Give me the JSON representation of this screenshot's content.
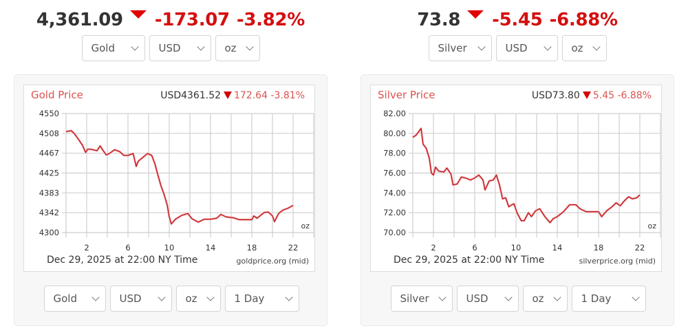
{
  "widgets": [
    {
      "metal": "gold",
      "headline": {
        "price": "4,361.09",
        "change": "-173.07",
        "percent": "-3.82%",
        "direction": "down"
      },
      "top_selects": {
        "metal": "Gold",
        "currency": "USD",
        "unit": "oz"
      },
      "chart": {
        "title": "Gold Price",
        "quote_price": "USD4361.52",
        "quote_change": "172.64",
        "quote_percent": "-3.81%",
        "unit_label": "oz",
        "date_label": "Dec 29, 2025 at 22:00 NY Time",
        "source_label": "goldprice.org (mid)"
      },
      "bottom_selects": {
        "metal": "Gold",
        "currency": "USD",
        "unit": "oz",
        "range": "1 Day"
      }
    },
    {
      "metal": "silver",
      "headline": {
        "price": "73.8",
        "change": "-5.45",
        "percent": "-6.88%",
        "direction": "down"
      },
      "top_selects": {
        "metal": "Silver",
        "currency": "USD",
        "unit": "oz"
      },
      "chart": {
        "title": "Silver Price",
        "quote_price": "USD73.80",
        "quote_change": "5.45",
        "quote_percent": "-6.88%",
        "unit_label": "oz",
        "date_label": "Dec 29, 2025 at 22:00 NY Time",
        "source_label": "silverprice.org (mid)"
      },
      "bottom_selects": {
        "metal": "Silver",
        "currency": "USD",
        "unit": "oz",
        "range": "1 Day"
      }
    }
  ],
  "colors": {
    "up_down_red": "#d40f0f",
    "title_red": "#d9534f",
    "line_red": "#c0141b",
    "panel_bg": "#f7f7f7"
  },
  "chart_data": [
    {
      "type": "line",
      "title": "Gold Price",
      "xlabel": "Dec 29, 2025 at 22:00 NY Time",
      "ylabel": "USD/oz",
      "x_ticks": [
        "2",
        "6",
        "10",
        "14",
        "18",
        "22"
      ],
      "y_ticks": [
        "4300",
        "4342",
        "4383",
        "4425",
        "4467",
        "4508",
        "4550"
      ],
      "ylim": [
        4300,
        4550
      ],
      "xlim": [
        0,
        24
      ],
      "grid": true,
      "series": [
        {
          "name": "Gold (USD/oz)",
          "x": [
            0,
            0.5,
            0.8,
            1.2,
            1.6,
            1.9,
            2.1,
            2.4,
            3.0,
            3.3,
            3.6,
            3.9,
            4.2,
            4.7,
            5.2,
            5.6,
            6.0,
            6.5,
            6.8,
            7.0,
            7.4,
            7.9,
            8.3,
            8.6,
            8.9,
            9.2,
            9.5,
            9.8,
            10.0,
            10.2,
            10.6,
            11.2,
            11.8,
            12.2,
            12.8,
            13.4,
            14.0,
            14.6,
            15.0,
            15.5,
            16.2,
            16.8,
            17.4,
            18.0,
            18.2,
            18.5,
            19.2,
            19.6,
            20.0,
            20.2,
            20.6,
            21.0,
            21.5,
            22.0
          ],
          "values": [
            4512,
            4514,
            4508,
            4496,
            4483,
            4468,
            4475,
            4475,
            4472,
            4482,
            4472,
            4463,
            4466,
            4474,
            4470,
            4462,
            4462,
            4466,
            4439,
            4450,
            4457,
            4466,
            4462,
            4445,
            4421,
            4398,
            4380,
            4358,
            4333,
            4318,
            4328,
            4336,
            4340,
            4329,
            4322,
            4328,
            4328,
            4330,
            4338,
            4333,
            4331,
            4327,
            4327,
            4327,
            4335,
            4330,
            4342,
            4343,
            4335,
            4323,
            4340,
            4347,
            4351,
            4357
          ]
        }
      ]
    },
    {
      "type": "line",
      "title": "Silver Price",
      "xlabel": "Dec 29, 2025 at 22:00 NY Time",
      "ylabel": "USD/oz",
      "x_ticks": [
        "2",
        "6",
        "10",
        "14",
        "18",
        "22"
      ],
      "y_ticks": [
        "70.00",
        "72.00",
        "74.00",
        "76.00",
        "78.00",
        "80.00",
        "82.00"
      ],
      "ylim": [
        70,
        82
      ],
      "xlim": [
        0,
        24
      ],
      "grid": true,
      "series": [
        {
          "name": "Silver (USD/oz)",
          "x": [
            0,
            0.3,
            0.6,
            0.8,
            1.0,
            1.3,
            1.6,
            1.8,
            2.0,
            2.2,
            2.5,
            3.0,
            3.3,
            3.7,
            3.9,
            4.3,
            4.7,
            5.1,
            5.6,
            6.0,
            6.4,
            6.8,
            7.0,
            7.4,
            7.8,
            8.1,
            8.4,
            8.7,
            9.0,
            9.3,
            9.6,
            9.8,
            10.1,
            10.5,
            10.8,
            11.2,
            11.5,
            11.9,
            12.3,
            12.8,
            13.3,
            13.6,
            14.0,
            14.6,
            15.2,
            15.8,
            16.2,
            16.8,
            17.4,
            18.0,
            18.3,
            18.8,
            19.3,
            19.7,
            20.1,
            20.5,
            20.9,
            21.3,
            21.7,
            22.0
          ],
          "values": [
            79.6,
            79.8,
            80.2,
            80.5,
            78.9,
            78.5,
            77.5,
            76.0,
            75.8,
            76.6,
            76.2,
            76.1,
            76.5,
            75.9,
            74.8,
            74.9,
            75.6,
            75.5,
            75.3,
            75.5,
            75.8,
            75.3,
            74.3,
            75.2,
            75.3,
            75.8,
            74.8,
            73.4,
            73.5,
            72.6,
            72.8,
            72.9,
            72.0,
            71.2,
            71.2,
            72.0,
            71.6,
            72.2,
            72.4,
            71.6,
            71.0,
            71.4,
            71.6,
            72.1,
            72.8,
            72.8,
            72.4,
            72.1,
            72.1,
            72.1,
            71.6,
            72.2,
            72.6,
            73.0,
            72.7,
            73.2,
            73.6,
            73.4,
            73.5,
            73.8
          ]
        }
      ]
    }
  ]
}
